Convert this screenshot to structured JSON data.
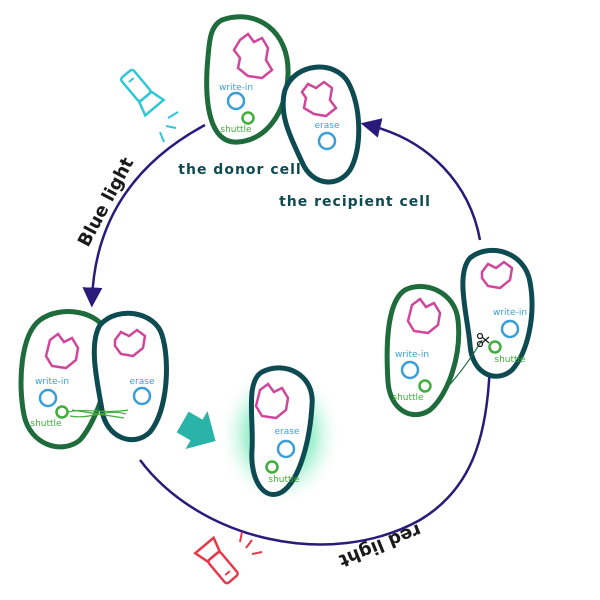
{
  "labels": {
    "donor_cell": "the donor cell",
    "recipient_cell": "the recipient cell",
    "blue_light": "Blue light",
    "red_light": "red light"
  },
  "plasmids": {
    "write_in": "write-in",
    "erase": "erase",
    "shuttle": "shuttle"
  },
  "colors": {
    "donor_outline": "#1e6b3c",
    "recipient_outline": "#0e4a52",
    "cell_fill": "#ffffff",
    "chromosome": "#d0469c",
    "write_in_ring": "#3a9fd6",
    "erase_ring": "#3a9fd6",
    "shuttle_ring": "#3fae3a",
    "cycle_arrow": "#2a1a7a",
    "blue_flashlight": "#2fc7d6",
    "red_flashlight": "#e23a4b",
    "transfer_arrow": "#2ab3a8",
    "glow": "#3fe0a0"
  },
  "icons": [
    "flashlight-blue-icon",
    "flashlight-red-icon",
    "scissors-icon",
    "transfer-arrow-icon"
  ]
}
